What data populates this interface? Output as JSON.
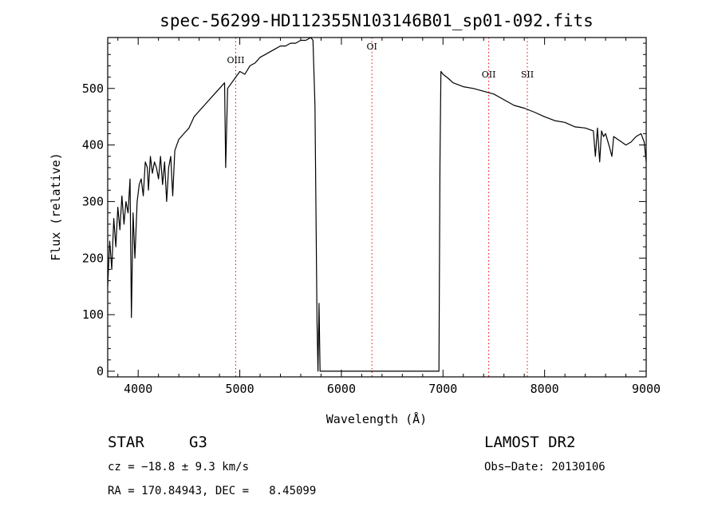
{
  "chart_data": {
    "type": "line",
    "title": "spec-56299-HD112355N103146B01_sp01-092.fits",
    "xlabel": "Wavelength (Å)",
    "ylabel": "Flux (relative)",
    "xlim": [
      3700,
      9000
    ],
    "ylim": [
      -10,
      590
    ],
    "x_ticks": [
      4000,
      5000,
      6000,
      7000,
      8000,
      9000
    ],
    "y_ticks": [
      0,
      100,
      200,
      300,
      400,
      500
    ],
    "grid": false,
    "legend": "none",
    "line_color": "#000000",
    "marker_color": "#ff0000",
    "spectral_lines": [
      {
        "name": "OIII",
        "wavelength": 4960
      },
      {
        "name": "OI",
        "wavelength": 6300
      },
      {
        "name": "OII",
        "wavelength": 7450
      },
      {
        "name": "SII",
        "wavelength": 7830
      }
    ],
    "series": [
      {
        "x": [
          3700,
          3720,
          3740,
          3760,
          3780,
          3800,
          3820,
          3840,
          3860,
          3880,
          3900,
          3920,
          3933,
          3950,
          3968,
          3990,
          4010,
          4030,
          4050,
          4070,
          4090,
          4101,
          4120,
          4140,
          4160,
          4180,
          4200,
          4220,
          4240,
          4260,
          4280,
          4300,
          4320,
          4340,
          4360,
          4380,
          4400,
          4450,
          4500,
          4550,
          4600,
          4650,
          4700,
          4750,
          4800,
          4850,
          4861,
          4880,
          4920,
          4960,
          5000,
          5050,
          5100,
          5150,
          5200,
          5250,
          5300,
          5350,
          5400,
          5450,
          5500,
          5550,
          5600,
          5650,
          5700,
          5720,
          5740,
          5760,
          5770,
          5780,
          5790,
          5800,
          6960,
          6970,
          6980,
          7000,
          7050,
          7100,
          7200,
          7300,
          7400,
          7500,
          7600,
          7700,
          7800,
          7900,
          8000,
          8100,
          8200,
          8300,
          8400,
          8480,
          8500,
          8520,
          8542,
          8560,
          8580,
          8600,
          8640,
          8662,
          8680,
          8720,
          8760,
          8800,
          8850,
          8900,
          8950,
          8980,
          9000
        ],
        "y": [
          150,
          230,
          180,
          270,
          220,
          290,
          250,
          310,
          260,
          300,
          280,
          340,
          95,
          280,
          200,
          300,
          330,
          340,
          310,
          370,
          360,
          320,
          380,
          350,
          370,
          360,
          340,
          380,
          330,
          370,
          300,
          360,
          380,
          310,
          390,
          400,
          410,
          420,
          430,
          450,
          460,
          470,
          480,
          490,
          500,
          510,
          360,
          500,
          510,
          520,
          530,
          525,
          540,
          545,
          555,
          560,
          565,
          570,
          575,
          575,
          580,
          580,
          585,
          585,
          590,
          585,
          470,
          85,
          0,
          120,
          0,
          0,
          0,
          370,
          530,
          525,
          518,
          510,
          503,
          500,
          495,
          490,
          480,
          470,
          465,
          458,
          450,
          443,
          440,
          432,
          430,
          425,
          380,
          430,
          370,
          425,
          415,
          420,
          395,
          380,
          415,
          410,
          405,
          400,
          405,
          415,
          420,
          405,
          370
        ]
      }
    ]
  },
  "footer": {
    "object_class": "STAR",
    "subclass": "G3",
    "cz": "cz = −18.8 ± 9.3 km/s",
    "coords": "RA = 170.84943, DEC =   8.45099",
    "survey": "LAMOST DR2",
    "obs_date": "Obs−Date: 20130106"
  }
}
